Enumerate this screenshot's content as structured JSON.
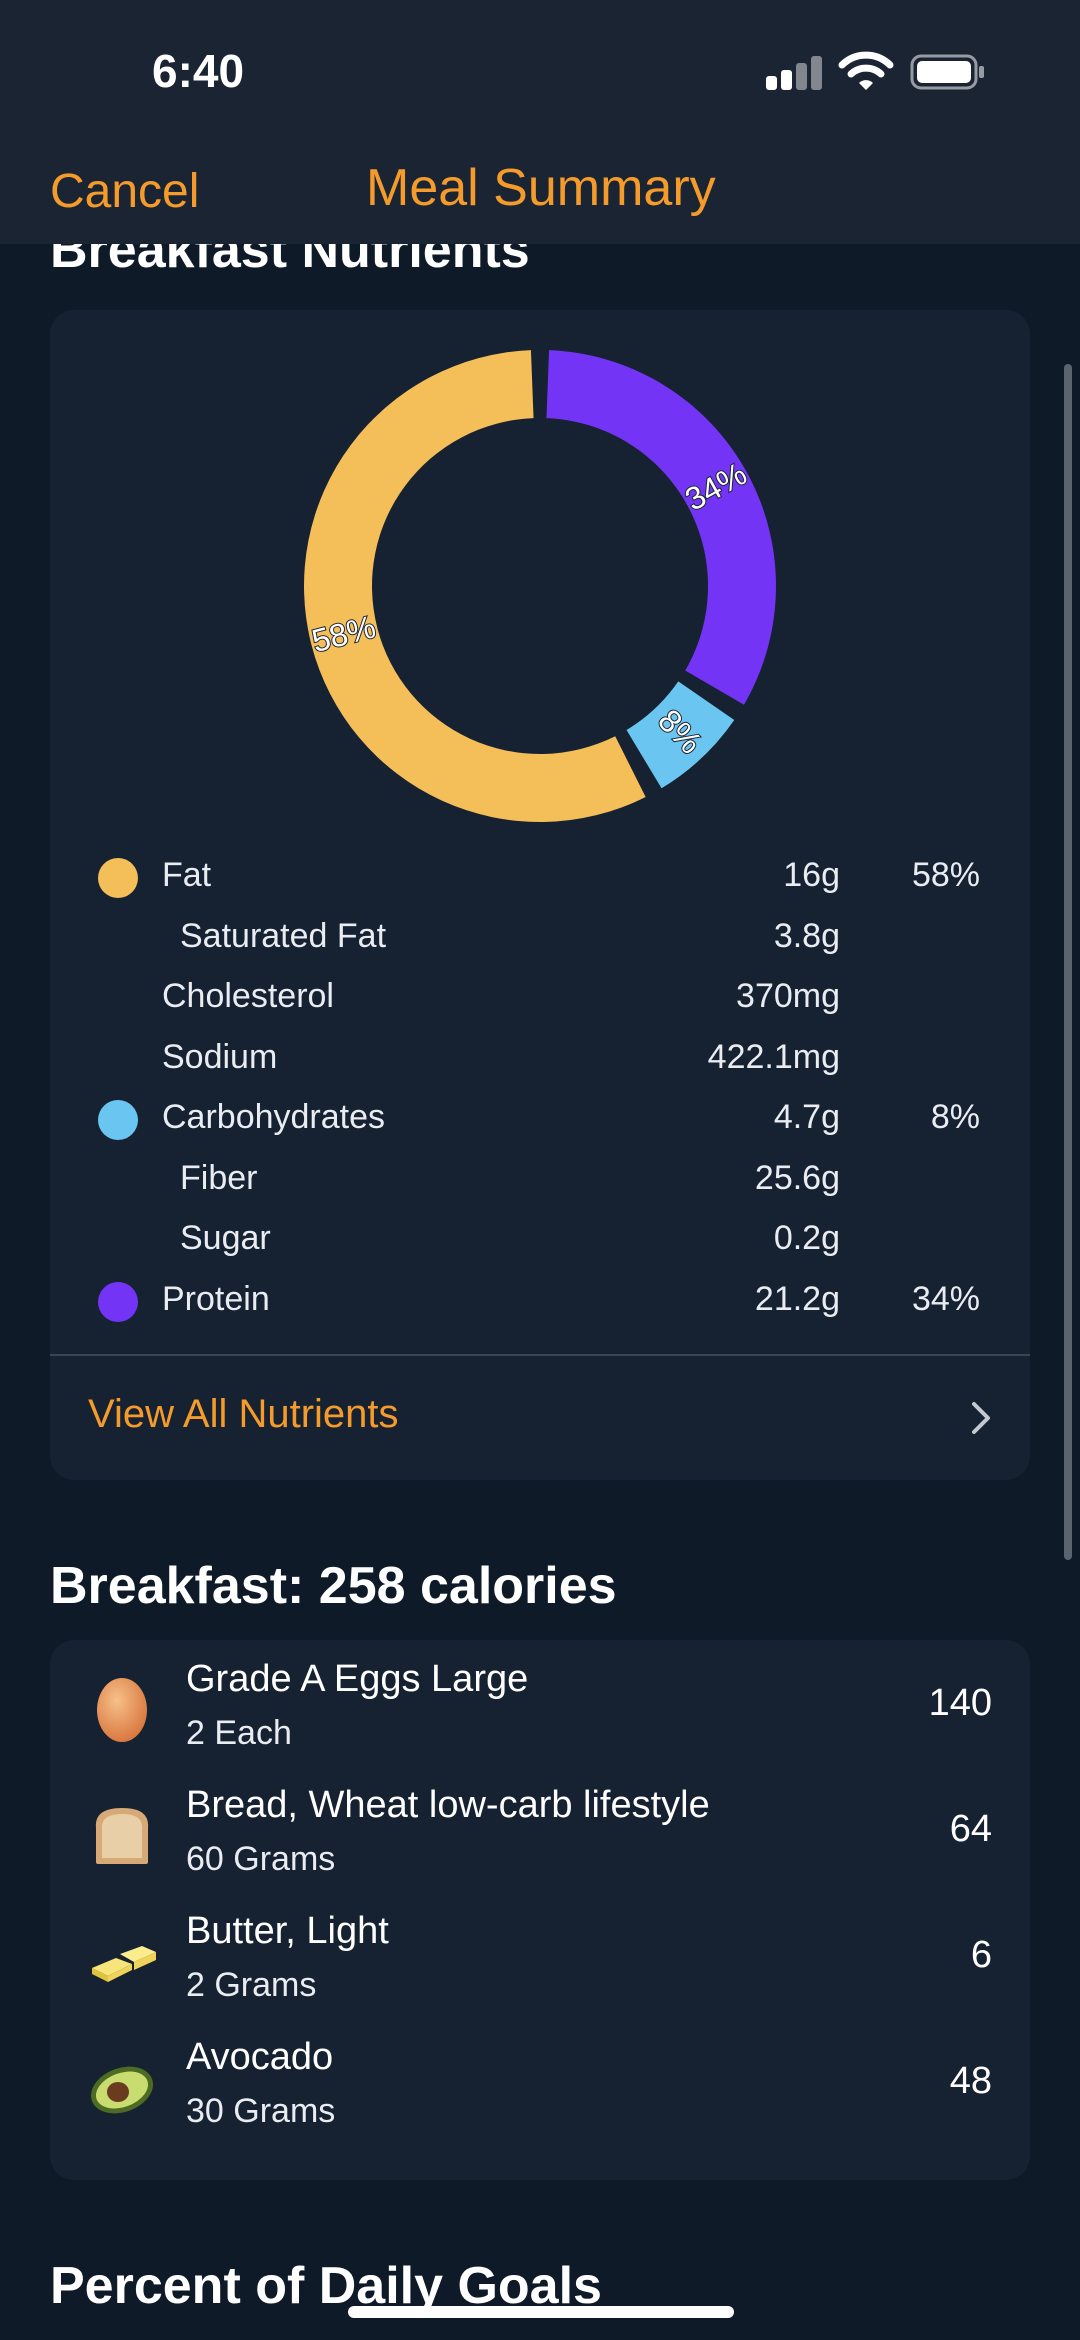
{
  "status": {
    "time": "6:40",
    "icons": [
      "cellular-signal-icon",
      "wifi-icon",
      "battery-icon"
    ]
  },
  "nav": {
    "cancel_label": "Cancel",
    "title": "Meal Summary"
  },
  "colors": {
    "accent": "#f49b2b",
    "fat": "#f4be59",
    "carbs": "#6ac6f0",
    "protein": "#7434f5",
    "card": "#162131",
    "background": "#0f1a28"
  },
  "nutrients_section": {
    "title": "Breakfast Nutrients",
    "view_all_label": "View All Nutrients",
    "rows": [
      {
        "label": "Fat",
        "amount": "16g",
        "percent": "58%",
        "dot": "fat",
        "indent": false
      },
      {
        "label": "Saturated Fat",
        "amount": "3.8g",
        "percent": "",
        "dot": "",
        "indent": true
      },
      {
        "label": "Cholesterol",
        "amount": "370mg",
        "percent": "",
        "dot": "",
        "indent": false
      },
      {
        "label": "Sodium",
        "amount": "422.1mg",
        "percent": "",
        "dot": "",
        "indent": false
      },
      {
        "label": "Carbohydrates",
        "amount": "4.7g",
        "percent": "8%",
        "dot": "carbs",
        "indent": false
      },
      {
        "label": "Fiber",
        "amount": "25.6g",
        "percent": "",
        "dot": "",
        "indent": true
      },
      {
        "label": "Sugar",
        "amount": "0.2g",
        "percent": "",
        "dot": "",
        "indent": true
      },
      {
        "label": "Protein",
        "amount": "21.2g",
        "percent": "34%",
        "dot": "protein",
        "indent": false
      }
    ]
  },
  "chart_data": {
    "type": "pie",
    "donut": true,
    "categories": [
      "Fat",
      "Carbohydrates",
      "Protein"
    ],
    "values": [
      58,
      8,
      34
    ],
    "labels": [
      "58%",
      "8%",
      "34%"
    ],
    "colors": [
      "#f4be59",
      "#6ac6f0",
      "#7434f5"
    ]
  },
  "breakfast": {
    "title": "Breakfast: 258 calories",
    "items": [
      {
        "name": "Grade A Eggs Large",
        "quantity": "2 Each",
        "calories": "140",
        "icon": "egg-icon"
      },
      {
        "name": "Bread, Wheat low-carb lifestyle",
        "quantity": "60 Grams",
        "calories": "64",
        "icon": "bread-icon"
      },
      {
        "name": "Butter, Light",
        "quantity": "2 Grams",
        "calories": "6",
        "icon": "butter-icon"
      },
      {
        "name": "Avocado",
        "quantity": "30 Grams",
        "calories": "48",
        "icon": "avocado-icon"
      }
    ]
  },
  "daily_goals": {
    "title": "Percent of Daily Goals"
  }
}
